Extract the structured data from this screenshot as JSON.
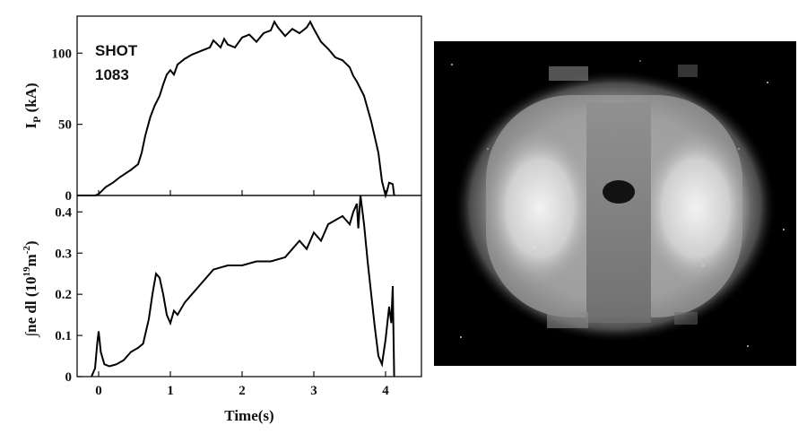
{
  "figure": {
    "annotation": {
      "line1": "SHOT",
      "line2": "1083"
    },
    "photo_panel": {
      "description_icon": "plasma-camera-image"
    }
  },
  "chart_data": [
    {
      "type": "line",
      "ylabel_main": "I",
      "ylabel_sub": "P",
      "ylabel_unit": " (kA)",
      "xlim": [
        -0.3,
        4.5
      ],
      "ylim": [
        0,
        126
      ],
      "yticks": [
        0,
        50,
        100
      ],
      "grid": false,
      "series": [
        {
          "x": [
            -0.3,
            -0.05,
            0.0,
            0.1,
            0.2,
            0.3,
            0.45,
            0.55,
            0.6,
            0.65,
            0.72,
            0.78,
            0.85,
            0.9,
            0.95,
            1.0,
            1.05,
            1.1,
            1.2,
            1.3,
            1.45,
            1.55,
            1.6,
            1.7,
            1.75,
            1.8,
            1.9,
            2.0,
            2.1,
            2.2,
            2.3,
            2.4,
            2.45,
            2.5,
            2.6,
            2.7,
            2.8,
            2.9,
            2.95,
            3.0,
            3.1,
            3.2,
            3.3,
            3.4,
            3.5,
            3.55,
            3.6,
            3.7,
            3.8,
            3.9,
            3.95,
            4.0,
            4.02,
            4.05,
            4.1,
            4.12
          ],
          "y": [
            0,
            0,
            1,
            6,
            9,
            13,
            18,
            22,
            30,
            42,
            55,
            63,
            70,
            78,
            85,
            88,
            85,
            92,
            96,
            99,
            102,
            104,
            109,
            104,
            110,
            106,
            104,
            111,
            113,
            108,
            114,
            116,
            122,
            118,
            112,
            117,
            114,
            118,
            122,
            117,
            108,
            103,
            97,
            95,
            90,
            84,
            80,
            70,
            52,
            30,
            10,
            0,
            3,
            9,
            8,
            0
          ]
        }
      ]
    },
    {
      "type": "line",
      "ylabel_main": "∫ne dl (10",
      "ylabel_sup1": "19",
      "ylabel_mid": "m",
      "ylabel_sup2": "-2",
      "ylabel_end": ")",
      "xlabel": "Time(s)",
      "xlim": [
        -0.3,
        4.5
      ],
      "ylim": [
        0,
        0.44
      ],
      "xticks": [
        0,
        1,
        2,
        3,
        4
      ],
      "yticks": [
        0,
        0.1,
        0.2,
        0.3,
        0.4
      ],
      "grid": false,
      "series": [
        {
          "x": [
            -0.1,
            -0.05,
            -0.02,
            0.0,
            0.03,
            0.08,
            0.15,
            0.25,
            0.35,
            0.45,
            0.55,
            0.62,
            0.7,
            0.75,
            0.8,
            0.85,
            0.9,
            0.95,
            1.0,
            1.05,
            1.1,
            1.2,
            1.3,
            1.4,
            1.5,
            1.6,
            1.8,
            2.0,
            2.2,
            2.4,
            2.6,
            2.7,
            2.8,
            2.9,
            3.0,
            3.1,
            3.2,
            3.3,
            3.4,
            3.5,
            3.55,
            3.6,
            3.62,
            3.65,
            3.7,
            3.75,
            3.8,
            3.85,
            3.9,
            3.95,
            4.0,
            4.05,
            4.08,
            4.1,
            4.12
          ],
          "y": [
            0,
            0.02,
            0.08,
            0.11,
            0.06,
            0.03,
            0.025,
            0.03,
            0.04,
            0.06,
            0.07,
            0.08,
            0.14,
            0.2,
            0.25,
            0.24,
            0.2,
            0.15,
            0.13,
            0.16,
            0.15,
            0.18,
            0.2,
            0.22,
            0.24,
            0.26,
            0.27,
            0.27,
            0.28,
            0.28,
            0.29,
            0.31,
            0.33,
            0.31,
            0.35,
            0.33,
            0.37,
            0.38,
            0.39,
            0.37,
            0.4,
            0.42,
            0.36,
            0.44,
            0.37,
            0.28,
            0.2,
            0.12,
            0.05,
            0.03,
            0.09,
            0.17,
            0.13,
            0.22,
            0.0
          ]
        }
      ]
    }
  ]
}
